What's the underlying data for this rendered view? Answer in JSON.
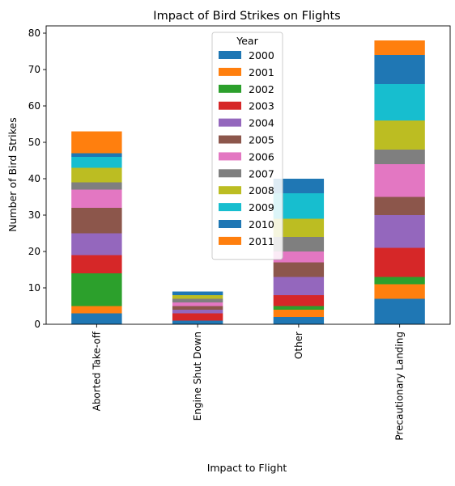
{
  "chart_data": {
    "type": "bar",
    "stacked": true,
    "title": "Impact of Bird Strikes on Flights",
    "xlabel": "Impact to Flight",
    "ylabel": "Number of Bird Strikes",
    "ylim": [
      0,
      82
    ],
    "yticks": [
      0,
      10,
      20,
      30,
      40,
      50,
      60,
      70,
      80
    ],
    "grid": false,
    "legend": {
      "title": "Year",
      "position": "upper center"
    },
    "categories": [
      "Aborted Take-off",
      "Engine Shut Down",
      "Other",
      "Precautionary Landing"
    ],
    "series": [
      {
        "name": "2000",
        "color": "#1f77b4",
        "values": [
          3,
          1,
          2,
          7
        ]
      },
      {
        "name": "2001",
        "color": "#ff7f0e",
        "values": [
          2,
          0,
          2,
          4
        ]
      },
      {
        "name": "2002",
        "color": "#2ca02c",
        "values": [
          9,
          0,
          1,
          2
        ]
      },
      {
        "name": "2003",
        "color": "#d62728",
        "values": [
          5,
          2,
          3,
          8
        ]
      },
      {
        "name": "2004",
        "color": "#9467bd",
        "values": [
          6,
          1,
          5,
          9
        ]
      },
      {
        "name": "2005",
        "color": "#8c564b",
        "values": [
          7,
          1,
          4,
          5
        ]
      },
      {
        "name": "2006",
        "color": "#e377c2",
        "values": [
          5,
          1,
          3,
          9
        ]
      },
      {
        "name": "2007",
        "color": "#7f7f7f",
        "values": [
          2,
          1,
          4,
          4
        ]
      },
      {
        "name": "2008",
        "color": "#bcbd22",
        "values": [
          4,
          1,
          5,
          8
        ]
      },
      {
        "name": "2009",
        "color": "#17becf",
        "values": [
          3,
          0,
          7,
          10
        ]
      },
      {
        "name": "2010",
        "color": "#1f77b4",
        "values": [
          1,
          1,
          4,
          8
        ]
      },
      {
        "name": "2011",
        "color": "#ff7f0e",
        "values": [
          6,
          0,
          0,
          4
        ]
      }
    ]
  }
}
